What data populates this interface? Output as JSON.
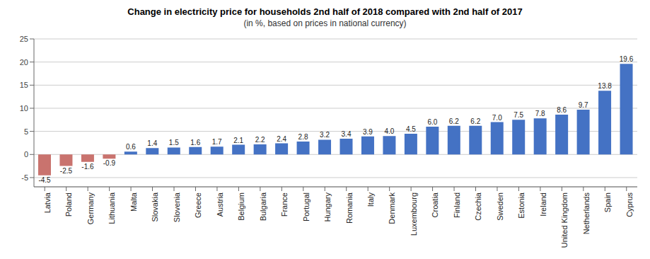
{
  "chart_data": {
    "type": "bar",
    "title": "Change in electricity price for households 2nd half of 2018 compared with 2nd half of 2017",
    "subtitle": "(in %, based on prices in national currency)",
    "categories": [
      "Latvia",
      "Poland",
      "Germany",
      "Lithuania",
      "Malta",
      "Slovakia",
      "Slovenia",
      "Greece",
      "Austria",
      "Belgium",
      "Bulgaria",
      "France",
      "Portugal",
      "Hungary",
      "Romania",
      "Italy",
      "Denmark",
      "Luxembourg",
      "Croatia",
      "Finland",
      "Czechia",
      "Sweden",
      "Estonia",
      "Ireland",
      "United Kingdom",
      "Netherlands",
      "Spain",
      "Cyprus"
    ],
    "values": [
      -4.5,
      -2.5,
      -1.6,
      -0.9,
      0.6,
      1.4,
      1.5,
      1.6,
      1.7,
      2.1,
      2.2,
      2.4,
      2.8,
      3.2,
      3.4,
      3.9,
      4.0,
      4.5,
      6.0,
      6.2,
      6.2,
      7.0,
      7.5,
      7.8,
      8.6,
      9.7,
      13.8,
      19.6
    ],
    "value_labels": [
      "-4.5",
      "-2.5",
      "-1.6",
      "-0.9",
      "0.6",
      "1.4",
      "1.5",
      "1.6",
      "1.7",
      "2.1",
      "2.2",
      "2.4",
      "2.8",
      "3.2",
      "3.4",
      "3.9",
      "4.0",
      "4.5",
      "6.0",
      "6.2",
      "6.2",
      "7.0",
      "7.5",
      "7.8",
      "8.6",
      "9.7",
      "13.8",
      "19.6"
    ],
    "colors": [
      "#c9736e",
      "#c9736e",
      "#c9736e",
      "#c9736e",
      "#4472c4",
      "#4472c4",
      "#4472c4",
      "#4472c4",
      "#4472c4",
      "#4472c4",
      "#4472c4",
      "#4472c4",
      "#4472c4",
      "#4472c4",
      "#4472c4",
      "#4472c4",
      "#4472c4",
      "#4472c4",
      "#4472c4",
      "#4472c4",
      "#4472c4",
      "#4472c4",
      "#4472c4",
      "#4472c4",
      "#4472c4",
      "#4472c4",
      "#4472c4",
      "#4472c4"
    ],
    "ylim": [
      -7,
      25
    ],
    "yticks": [
      -5,
      0,
      5,
      10,
      15,
      20,
      25
    ],
    "grid": true,
    "data_labels": true
  }
}
